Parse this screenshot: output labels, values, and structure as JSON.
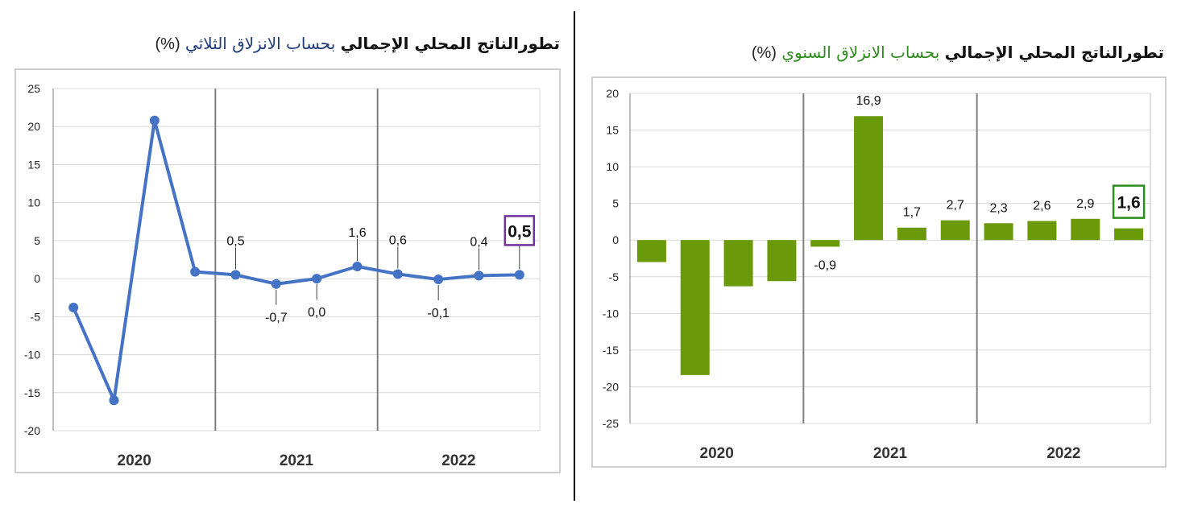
{
  "titles": {
    "left": {
      "bold": "تطورالناتج المحلي الإجمالي",
      "plain": "بحساب الانزلاق الثلاثي",
      "pct": "(%)",
      "plain_color": "#1f3a7a"
    },
    "right": {
      "bold": "تطورالناتج المحلي الإجمالي",
      "plain": "بحساب الانزلاق السنوي",
      "pct": "(%)",
      "plain_color": "#2e8b1e"
    }
  },
  "chart_data": [
    {
      "type": "line",
      "title": "تطورالناتج المحلي الإجمالي بحساب الانزلاق الثلاثي (%)",
      "ylim": [
        -20,
        25
      ],
      "yticks": [
        25,
        20,
        15,
        10,
        5,
        0,
        -5,
        -10,
        -15,
        -20
      ],
      "groups": [
        "2020",
        "2021",
        "2022"
      ],
      "grid": "horizontal and group separators",
      "color": "#4472c4",
      "points": [
        {
          "value": -3.8,
          "label": ""
        },
        {
          "value": -16.0,
          "label": ""
        },
        {
          "value": 20.8,
          "label": ""
        },
        {
          "value": 0.9,
          "label": ""
        },
        {
          "value": 0.5,
          "label": "0,5"
        },
        {
          "value": -0.7,
          "label": "-0,7"
        },
        {
          "value": 0.0,
          "label": "0,0"
        },
        {
          "value": 1.6,
          "label": "1,6"
        },
        {
          "value": 0.6,
          "label": "0,6"
        },
        {
          "value": -0.1,
          "label": "-0,1"
        },
        {
          "value": 0.4,
          "label": "0,4"
        },
        {
          "value": 0.5,
          "label": "0,5",
          "highlight": true,
          "highlight_color": "#7030a0"
        }
      ]
    },
    {
      "type": "bar",
      "title": "تطورالناتج المحلي الإجمالي بحساب الانزلاق السنوي (%)",
      "ylim": [
        -25,
        20
      ],
      "yticks": [
        20,
        15,
        10,
        5,
        0,
        -5,
        -10,
        -15,
        -20,
        -25
      ],
      "groups": [
        "2020",
        "2021",
        "2022"
      ],
      "grid": "horizontal and group separators",
      "color": "#6a9a0a",
      "bars": [
        {
          "value": -3.0,
          "label": ""
        },
        {
          "value": -18.4,
          "label": ""
        },
        {
          "value": -6.3,
          "label": ""
        },
        {
          "value": -5.6,
          "label": ""
        },
        {
          "value": -0.9,
          "label": "-0,9"
        },
        {
          "value": 16.9,
          "label": "16,9"
        },
        {
          "value": 1.7,
          "label": "1,7"
        },
        {
          "value": 2.7,
          "label": "2,7"
        },
        {
          "value": 2.3,
          "label": "2,3"
        },
        {
          "value": 2.6,
          "label": "2,6",
          "label_color": "#1f3a7a"
        },
        {
          "value": 2.9,
          "label": "2,9"
        },
        {
          "value": 1.6,
          "label": "1,6",
          "highlight": true,
          "highlight_color": "#2e8b1e"
        }
      ]
    }
  ]
}
